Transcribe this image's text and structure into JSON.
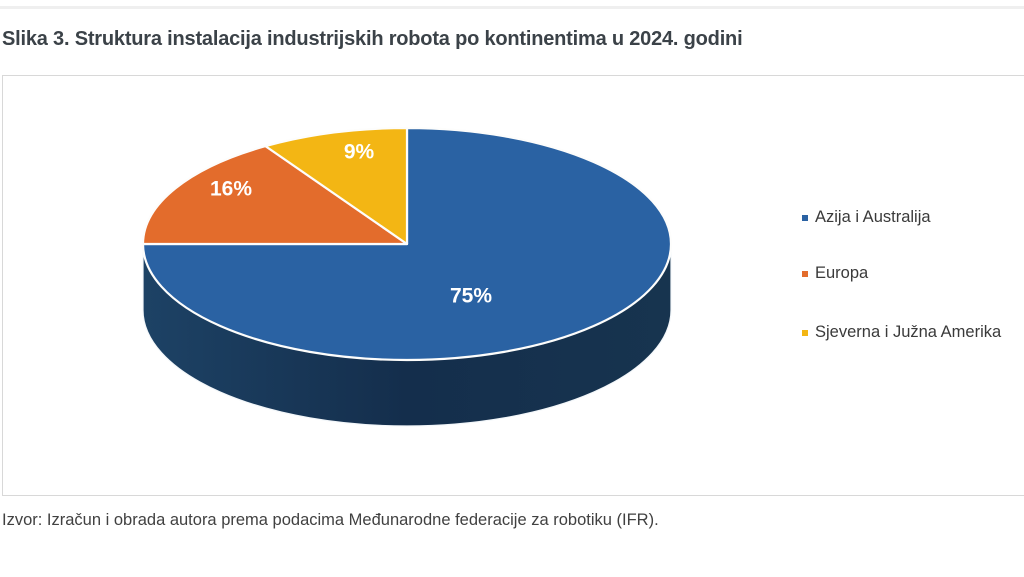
{
  "page": {
    "title": "Slika 3. Struktura instalacija industrijskih robota po kontinentima u 2024. godini",
    "source_note": "Izvor: Izračun i obrada autora prema podacima Međunarodne federacije za robotiku (IFR)."
  },
  "chart_data": {
    "type": "pie",
    "effect": "3d",
    "title": "Struktura instalacija industrijskih robota po kontinentima u 2024. godini",
    "unit": "%",
    "labels": [
      "Azija i Australija",
      "Europa",
      "Sjeverna i Južna Amerika"
    ],
    "values": [
      75,
      16,
      9
    ],
    "data_labels": [
      "75%",
      "16%",
      "9%"
    ],
    "colors": [
      "#2a62a3",
      "#e36c2c",
      "#f3b614"
    ],
    "side_colors": [
      "#1d4265",
      "#142e4c",
      "#17344f"
    ],
    "slice_border_color": "#fdfdfc",
    "data_label_color": "#ffffff",
    "legend_position": "right",
    "start_angle_deg": 0,
    "direction": "clockwise"
  }
}
